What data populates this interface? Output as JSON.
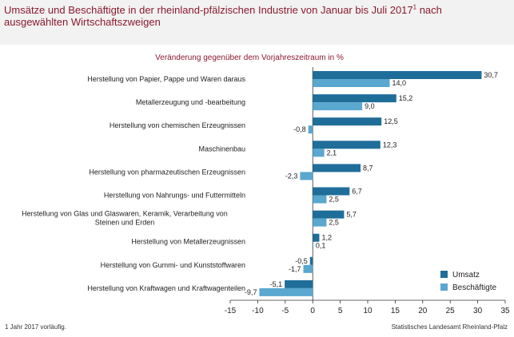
{
  "header": {
    "title": "Umsätze und Beschäftigte in der rheinland-pfälzischen Industrie von Januar bis Juli 2017",
    "title_sup": "1",
    "title_rest": " nach ausgewählten Wirtschaftszweigen"
  },
  "footer": {
    "footnote": "1 Jahr 2017 vorläufig.",
    "source": "Statistisches Landesamt Rheinland-Pfalz"
  },
  "colors": {
    "title": "#8b1a2f",
    "umsatz": "#1f6e99",
    "beschaeftigte": "#5aa7cf",
    "axis": "#333333"
  },
  "chart_data": {
    "type": "bar",
    "orientation": "horizontal",
    "subtitle": "Veränderung gegenüber dem Vorjahreszeitraum in %",
    "categories": [
      "Herstellung von Papier, Pappe und Waren daraus",
      "Metallerzeugung und -bearbeitung",
      "Herstellung von chemischen Erzeugnissen",
      "Maschinenbau",
      "Herstellung von pharmazeutischen Erzeugnissen",
      "Herstellung von Nahrungs- und Futtermitteln",
      "Herstellung von Glas und Glaswaren, Keramik, Verarbeitung von Steinen und Erden",
      "Herstellung von Metallerzeugnissen",
      "Herstellung von Gummi- und Kunststoffwaren",
      "Herstellung von Kraftwagen und Kraftwagenteilen"
    ],
    "category_lines": [
      [
        "Herstellung von Papier, Pappe und Waren daraus"
      ],
      [
        "Metallerzeugung und -bearbeitung"
      ],
      [
        "Herstellung von chemischen Erzeugnissen"
      ],
      [
        "Maschinenbau"
      ],
      [
        "Herstellung von pharmazeutischen Erzeugnissen"
      ],
      [
        "Herstellung von Nahrungs- und Futtermitteln"
      ],
      [
        "Herstellung von Glas und Glaswaren, Keramik, Verarbeitung von",
        "Steinen und Erden"
      ],
      [
        "Herstellung von Metallerzeugnissen"
      ],
      [
        "Herstellung von Gummi- und Kunststoffwaren"
      ],
      [
        "Herstellung von Kraftwagen und Kraftwagenteilen"
      ]
    ],
    "series": [
      {
        "name": "Umsatz",
        "values": [
          30.7,
          15.2,
          12.5,
          12.3,
          8.7,
          6.7,
          5.7,
          1.2,
          -0.5,
          -5.1
        ],
        "labels": [
          "30,7",
          "15,2",
          "12,5",
          "12,3",
          "8,7",
          "6,7",
          "5,7",
          "1,2",
          "-0,5",
          "-5,1"
        ]
      },
      {
        "name": "Beschäftigte",
        "values": [
          14.0,
          9.0,
          -0.8,
          2.1,
          -2.3,
          2.5,
          2.5,
          0.1,
          -1.7,
          -9.7
        ],
        "labels": [
          "14,0",
          "9,0",
          "-0,8",
          "2,1",
          "-2,3",
          "2,5",
          "2,5",
          "0,1",
          "-1,7",
          "-9,7"
        ]
      }
    ],
    "xlim": [
      -15,
      35
    ],
    "xticks": [
      -15,
      -10,
      -5,
      0,
      5,
      10,
      15,
      20,
      25,
      30,
      35
    ],
    "xtick_labels": [
      "-15",
      "-10",
      "-5",
      "0",
      "5",
      "10",
      "15",
      "20",
      "25",
      "30",
      "35"
    ],
    "grid": false,
    "legend_position": "bottom-right"
  }
}
